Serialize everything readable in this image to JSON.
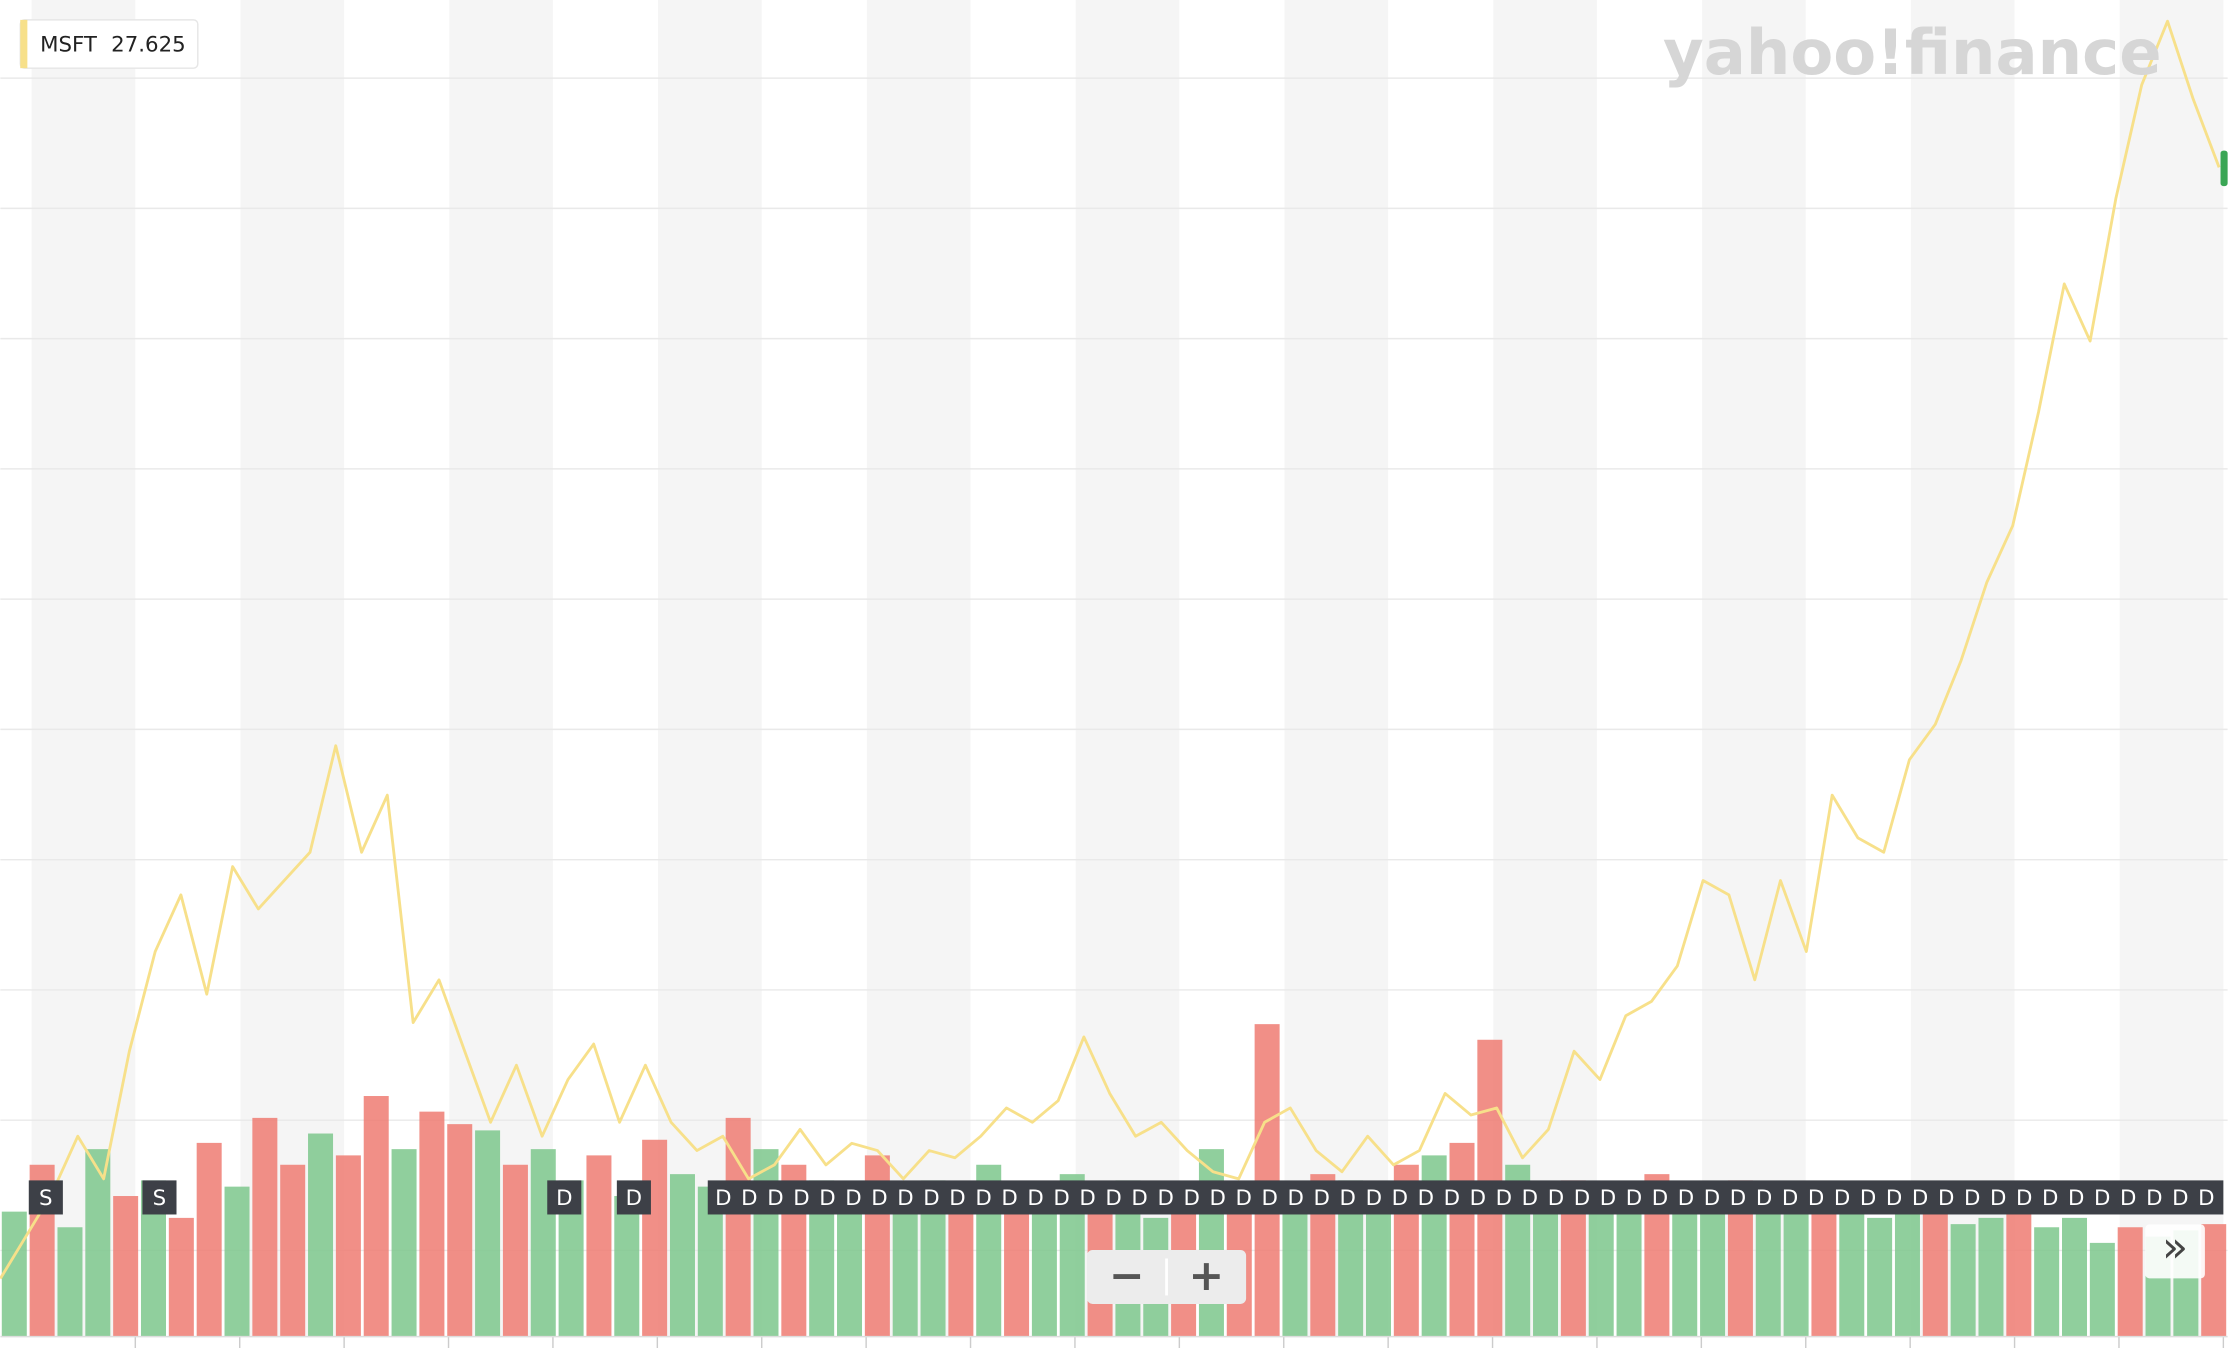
{
  "legend": {
    "symbol": "MSFT",
    "price": 27.625
  },
  "logo": "yahoo!finance",
  "chart_data": {
    "type": "line",
    "color": "#f7e08a",
    "values": [
      1.34,
      2.35,
      3.36,
      4.71,
      3.7,
      6.72,
      9.08,
      10.42,
      8.07,
      11.09,
      10.09,
      10.76,
      11.43,
      13.95,
      11.43,
      12.78,
      7.4,
      8.41,
      6.72,
      5.04,
      6.39,
      4.71,
      6.05,
      6.89,
      5.04,
      6.39,
      5.04,
      4.37,
      4.71,
      3.7,
      4.03,
      4.87,
      4.03,
      4.54,
      4.37,
      3.7,
      4.37,
      4.2,
      4.71,
      5.38,
      5.04,
      5.55,
      7.06,
      5.72,
      4.71,
      5.04,
      4.37,
      3.87,
      3.7,
      5.04,
      5.38,
      4.37,
      3.87,
      4.71,
      4.03,
      4.37,
      5.72,
      5.21,
      5.38,
      4.2,
      4.87,
      6.72,
      6.05,
      7.56,
      7.9,
      8.74,
      10.76,
      10.42,
      8.41,
      10.76,
      9.08,
      12.78,
      11.77,
      11.43,
      13.62,
      14.46,
      15.97,
      17.82,
      19.16,
      21.85,
      24.88,
      23.53,
      26.9,
      29.59,
      31.1,
      29.25,
      27.64
    ],
    "ylim": [
      0,
      31.6
    ],
    "volume": {
      "ylim": [
        0,
        100
      ],
      "up_color": "#7cc78c",
      "down_color": "#ef7b72",
      "values": [
        40,
        55,
        35,
        60,
        45,
        50,
        38,
        62,
        48,
        70,
        55,
        65,
        58,
        77,
        60,
        72,
        68,
        66,
        55,
        60,
        50,
        58,
        45,
        63,
        52,
        48,
        70,
        60,
        55,
        50,
        45,
        58,
        42,
        50,
        48,
        55,
        40,
        46,
        52,
        44,
        50,
        38,
        45,
        60,
        48,
        100,
        45,
        52,
        50,
        48,
        55,
        58,
        62,
        95,
        55,
        48,
        50,
        45,
        40,
        52,
        47,
        44,
        50,
        42,
        48,
        40,
        45,
        38,
        42,
        40,
        36,
        38,
        40,
        35,
        38,
        30,
        35,
        32,
        34,
        36
      ],
      "up": [
        true,
        false,
        true,
        true,
        false,
        true,
        false,
        false,
        true,
        false,
        false,
        true,
        false,
        false,
        true,
        false,
        false,
        true,
        false,
        true,
        true,
        false,
        true,
        false,
        true,
        true,
        false,
        true,
        false,
        true,
        true,
        false,
        true,
        true,
        false,
        true,
        false,
        true,
        true,
        false,
        true,
        true,
        false,
        true,
        false,
        false,
        true,
        false,
        true,
        true,
        false,
        true,
        false,
        false,
        true,
        true,
        false,
        true,
        true,
        false,
        true,
        true,
        false,
        true,
        true,
        false,
        true,
        true,
        true,
        false,
        true,
        true,
        false,
        true,
        true,
        true,
        false,
        true,
        true,
        false
      ]
    }
  },
  "events": [
    "S",
    "S",
    "D",
    "D",
    "D",
    "D",
    "D",
    "D",
    "D",
    "D",
    "D",
    "D",
    "D",
    "D",
    "D",
    "D",
    "D",
    "D",
    "D",
    "D",
    "D",
    "D",
    "D",
    "D",
    "D",
    "D",
    "D",
    "D",
    "D",
    "D",
    "D",
    "D",
    "D",
    "D",
    "D",
    "D",
    "D",
    "D",
    "D",
    "D",
    "D",
    "D",
    "D",
    "D",
    "D",
    "D",
    "D",
    "D",
    "D",
    "D",
    "D",
    "D",
    "D",
    "D",
    "D",
    "D",
    "D",
    "D",
    "D",
    "D",
    "D",
    "D"
  ],
  "zoom": {
    "out": "−",
    "in": "+"
  },
  "expand": "»"
}
